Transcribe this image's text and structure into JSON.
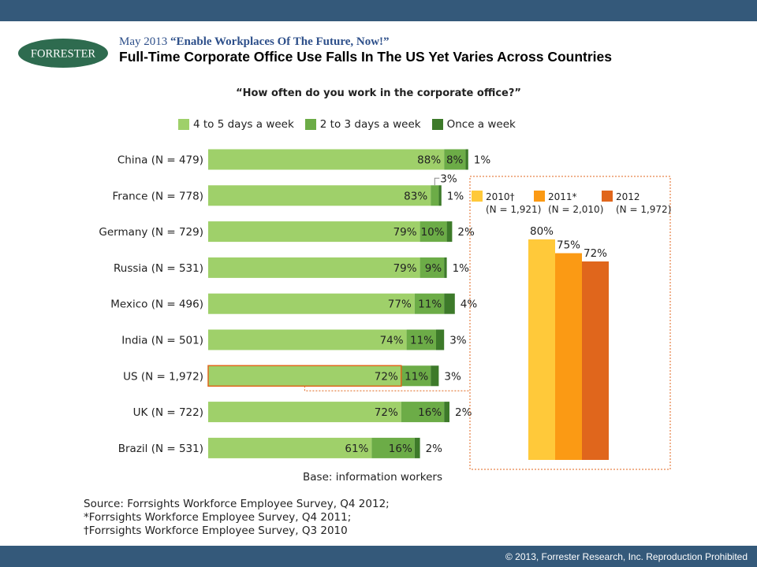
{
  "header": {
    "logo_text": "FORRESTER",
    "kicker_date": "May 2013",
    "kicker_title": "“Enable Workplaces Of The Future, Now!”",
    "headline": "Full-Time Corporate Office Use Falls In The US Yet Varies Across Countries"
  },
  "footer": {
    "copyright": "© 2013, Forrester Research, Inc. Reproduction Prohibited",
    "base": "Base: information workers",
    "sources": [
      "Source: Forrsights Workforce Employee Survey, Q4 2012;",
      "*Forrsights Workforce Employee Survey, Q4 2011;",
      "†Forrsights Workforce Employee Survey, Q3 2010"
    ]
  },
  "colors": {
    "bar_4to5": "#9fd06a",
    "bar_2to3": "#6cac47",
    "bar_once": "#3d7a2a",
    "year_2010": "#ffc93a",
    "year_2011": "#fb9a14",
    "year_2012": "#e0661c",
    "highlight": "#e0661c",
    "band": "#34597a"
  },
  "chart_data": [
    {
      "type": "bar",
      "orientation": "horizontal",
      "stacked": true,
      "title": "“How often do you work in the corporate office?”",
      "categories": [
        "China (N = 479)",
        "France (N = 778)",
        "Germany (N = 729)",
        "Russia (N = 531)",
        "Mexico (N = 496)",
        "India (N = 501)",
        "US (N = 1,972)",
        "UK (N = 722)",
        "Brazil (N = 531)"
      ],
      "series": [
        {
          "name": "4 to 5 days a week",
          "values": [
            88,
            83,
            79,
            79,
            77,
            74,
            72,
            72,
            61
          ]
        },
        {
          "name": "2 to 3 days a week",
          "values": [
            8,
            3,
            10,
            9,
            11,
            11,
            11,
            16,
            16
          ]
        },
        {
          "name": "Once a week",
          "values": [
            1,
            1,
            2,
            1,
            4,
            3,
            3,
            2,
            2
          ]
        }
      ],
      "unit": "%",
      "highlight_category": "US (N = 1,972)",
      "legend_position": "top"
    },
    {
      "type": "bar",
      "title": "",
      "categories": [
        "2010†",
        "2011*",
        "2012"
      ],
      "category_notes": [
        "(N = 1,921)",
        "(N = 2,010)",
        "(N = 1,972)"
      ],
      "values": [
        80,
        75,
        72
      ],
      "unit": "%",
      "legend_position": "top"
    }
  ]
}
